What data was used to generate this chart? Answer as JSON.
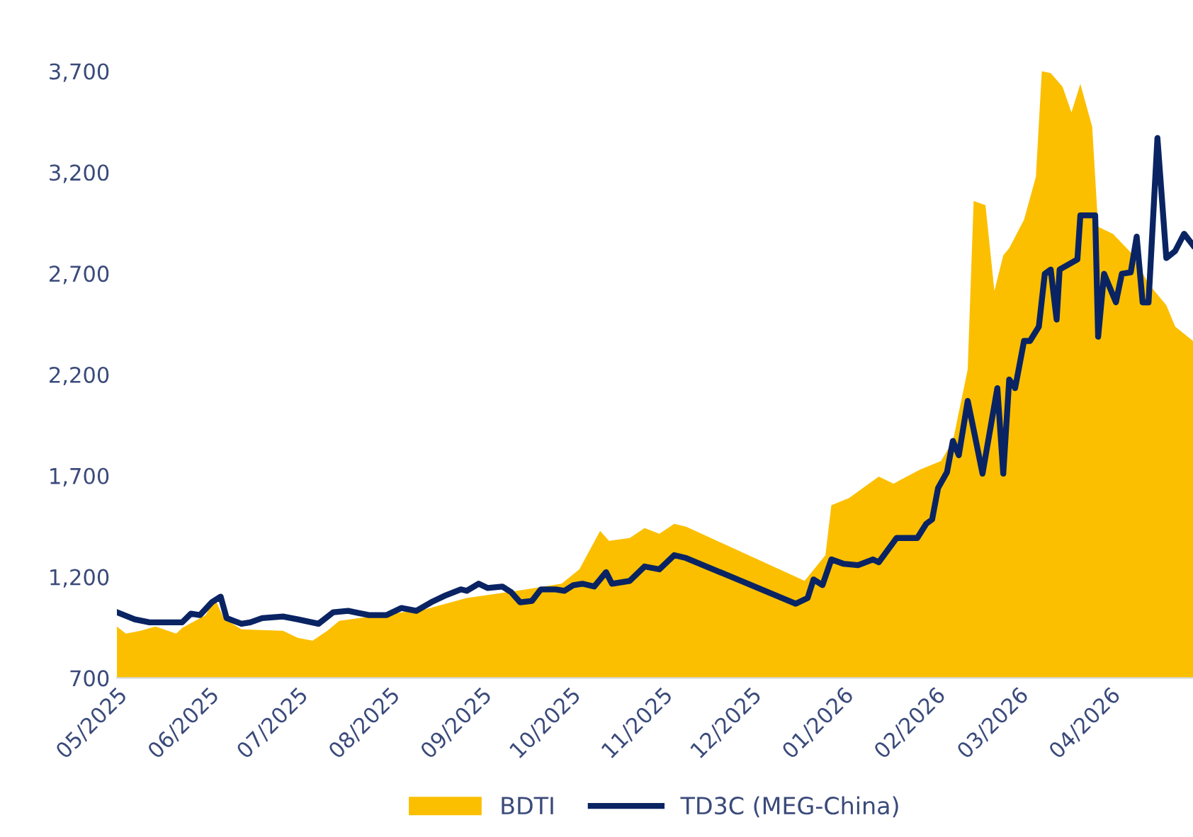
{
  "chart_data": {
    "type": "line",
    "ylim": [
      700,
      3700
    ],
    "yticks": [
      {
        "value": 700,
        "label": "700"
      },
      {
        "value": 1200,
        "label": "1,200"
      },
      {
        "value": 1700,
        "label": "1,700"
      },
      {
        "value": 2200,
        "label": "2,200"
      },
      {
        "value": 2700,
        "label": "2,700"
      },
      {
        "value": 3200,
        "label": "3,200"
      },
      {
        "value": 3700,
        "label": "3,700"
      }
    ],
    "xlim": [
      "2025-05-01",
      "2026-04-29"
    ],
    "xticks": [
      {
        "value": "2025-05-01",
        "label": "05/2025"
      },
      {
        "value": "2025-06-01",
        "label": "06/2025"
      },
      {
        "value": "2025-07-01",
        "label": "07/2025"
      },
      {
        "value": "2025-08-01",
        "label": "08/2025"
      },
      {
        "value": "2025-09-01",
        "label": "09/2025"
      },
      {
        "value": "2025-10-01",
        "label": "10/2025"
      },
      {
        "value": "2025-11-01",
        "label": "11/2025"
      },
      {
        "value": "2025-12-01",
        "label": "12/2025"
      },
      {
        "value": "2026-01-01",
        "label": "01/2026"
      },
      {
        "value": "2026-02-01",
        "label": "02/2026"
      },
      {
        "value": "2026-03-01",
        "label": "03/2026"
      },
      {
        "value": "2026-04-01",
        "label": "04/2026"
      }
    ],
    "grid": false,
    "legend": "bottom",
    "series": [
      {
        "name": "BDTI",
        "type": "area",
        "color": "#fbbf00",
        "x": [
          "2025-05-01",
          "2025-05-04",
          "2025-05-09",
          "2025-05-14",
          "2025-05-21",
          "2025-05-23",
          "2025-05-31",
          "2025-06-03",
          "2025-06-06",
          "2025-06-12",
          "2025-06-26",
          "2025-07-01",
          "2025-07-06",
          "2025-07-11",
          "2025-07-15",
          "2025-07-29",
          "2025-08-13",
          "2025-08-27",
          "2025-09-13",
          "2025-09-28",
          "2025-10-04",
          "2025-10-11",
          "2025-10-14",
          "2025-10-21",
          "2025-10-26",
          "2025-10-31",
          "2025-11-05",
          "2025-11-09",
          "2025-12-19",
          "2025-12-26",
          "2025-12-28",
          "2026-01-03",
          "2026-01-13",
          "2026-01-18",
          "2026-01-27",
          "2026-02-03",
          "2026-02-07",
          "2026-02-12",
          "2026-02-14",
          "2026-02-18",
          "2026-02-21",
          "2026-02-24",
          "2026-02-26",
          "2026-03-03",
          "2026-03-07",
          "2026-03-09",
          "2026-03-12",
          "2026-03-16",
          "2026-03-19",
          "2026-03-22",
          "2026-03-26",
          "2026-03-28",
          "2026-04-02",
          "2026-04-08",
          "2026-04-14",
          "2026-04-20",
          "2026-04-23",
          "2026-04-29"
        ],
        "values": [
          954,
          919,
          933,
          954,
          919,
          947,
          1011,
          1095,
          996,
          940,
          933,
          898,
          884,
          933,
          982,
          1011,
          1039,
          1095,
          1131,
          1166,
          1237,
          1427,
          1378,
          1392,
          1441,
          1413,
          1462,
          1448,
          1180,
          1307,
          1554,
          1590,
          1696,
          1661,
          1731,
          1773,
          1872,
          2225,
          3058,
          3037,
          2613,
          2790,
          2825,
          2966,
          3178,
          3700,
          3690,
          3623,
          3496,
          3637,
          3425,
          2931,
          2896,
          2804,
          2649,
          2543,
          2437,
          2366
        ]
      },
      {
        "name": "TD3C (MEG-China)",
        "color": "#0a2463",
        "x": [
          "2025-05-01",
          "2025-05-07",
          "2025-05-12",
          "2025-05-16",
          "2025-05-23",
          "2025-05-26",
          "2025-05-29",
          "2025-06-02",
          "2025-06-05",
          "2025-06-07",
          "2025-06-12",
          "2025-06-15",
          "2025-06-19",
          "2025-06-26",
          "2025-07-01",
          "2025-07-08",
          "2025-07-13",
          "2025-07-18",
          "2025-07-25",
          "2025-07-31",
          "2025-08-05",
          "2025-08-10",
          "2025-08-15",
          "2025-08-20",
          "2025-08-25",
          "2025-08-27",
          "2025-08-31",
          "2025-09-03",
          "2025-09-08",
          "2025-09-11",
          "2025-09-14",
          "2025-09-18",
          "2025-09-21",
          "2025-09-26",
          "2025-09-29",
          "2025-10-02",
          "2025-10-05",
          "2025-10-09",
          "2025-10-13",
          "2025-10-15",
          "2025-10-21",
          "2025-10-26",
          "2025-10-31",
          "2025-11-05",
          "2025-11-09",
          "2025-12-16",
          "2025-12-20",
          "2025-12-22",
          "2025-12-25",
          "2025-12-28",
          "2026-01-01",
          "2026-01-06",
          "2026-01-11",
          "2026-01-13",
          "2026-01-19",
          "2026-01-26",
          "2026-01-29",
          "2026-01-31",
          "2026-02-02",
          "2026-02-05",
          "2026-02-07",
          "2026-02-09",
          "2026-02-12",
          "2026-02-14",
          "2026-02-17",
          "2026-02-22",
          "2026-02-24",
          "2026-02-26",
          "2026-02-28",
          "2026-03-03",
          "2026-03-05",
          "2026-03-08",
          "2026-03-10",
          "2026-03-12",
          "2026-03-14",
          "2026-03-15",
          "2026-03-21",
          "2026-03-22",
          "2026-03-27",
          "2026-03-28",
          "2026-03-30",
          "2026-04-03",
          "2026-04-05",
          "2026-04-08",
          "2026-04-10",
          "2026-04-12",
          "2026-04-14",
          "2026-04-17",
          "2026-04-20",
          "2026-04-23",
          "2026-04-26",
          "2026-04-29"
        ],
        "values": [
          1025,
          990,
          975,
          975,
          975,
          1018,
          1011,
          1074,
          1102,
          996,
          968,
          975,
          996,
          1004,
          990,
          968,
          1025,
          1032,
          1011,
          1011,
          1046,
          1032,
          1074,
          1109,
          1138,
          1131,
          1166,
          1145,
          1152,
          1124,
          1074,
          1081,
          1138,
          1138,
          1131,
          1159,
          1166,
          1152,
          1223,
          1166,
          1180,
          1251,
          1237,
          1307,
          1293,
          1067,
          1095,
          1187,
          1159,
          1286,
          1265,
          1258,
          1286,
          1272,
          1392,
          1392,
          1462,
          1484,
          1639,
          1717,
          1872,
          1801,
          2070,
          1928,
          1710,
          2133,
          1710,
          2176,
          2133,
          2366,
          2366,
          2437,
          2698,
          2719,
          2472,
          2719,
          2769,
          2987,
          2987,
          2387,
          2698,
          2557,
          2698,
          2705,
          2882,
          2557,
          2557,
          3369,
          2776,
          2811,
          2896,
          2839
        ]
      }
    ]
  }
}
